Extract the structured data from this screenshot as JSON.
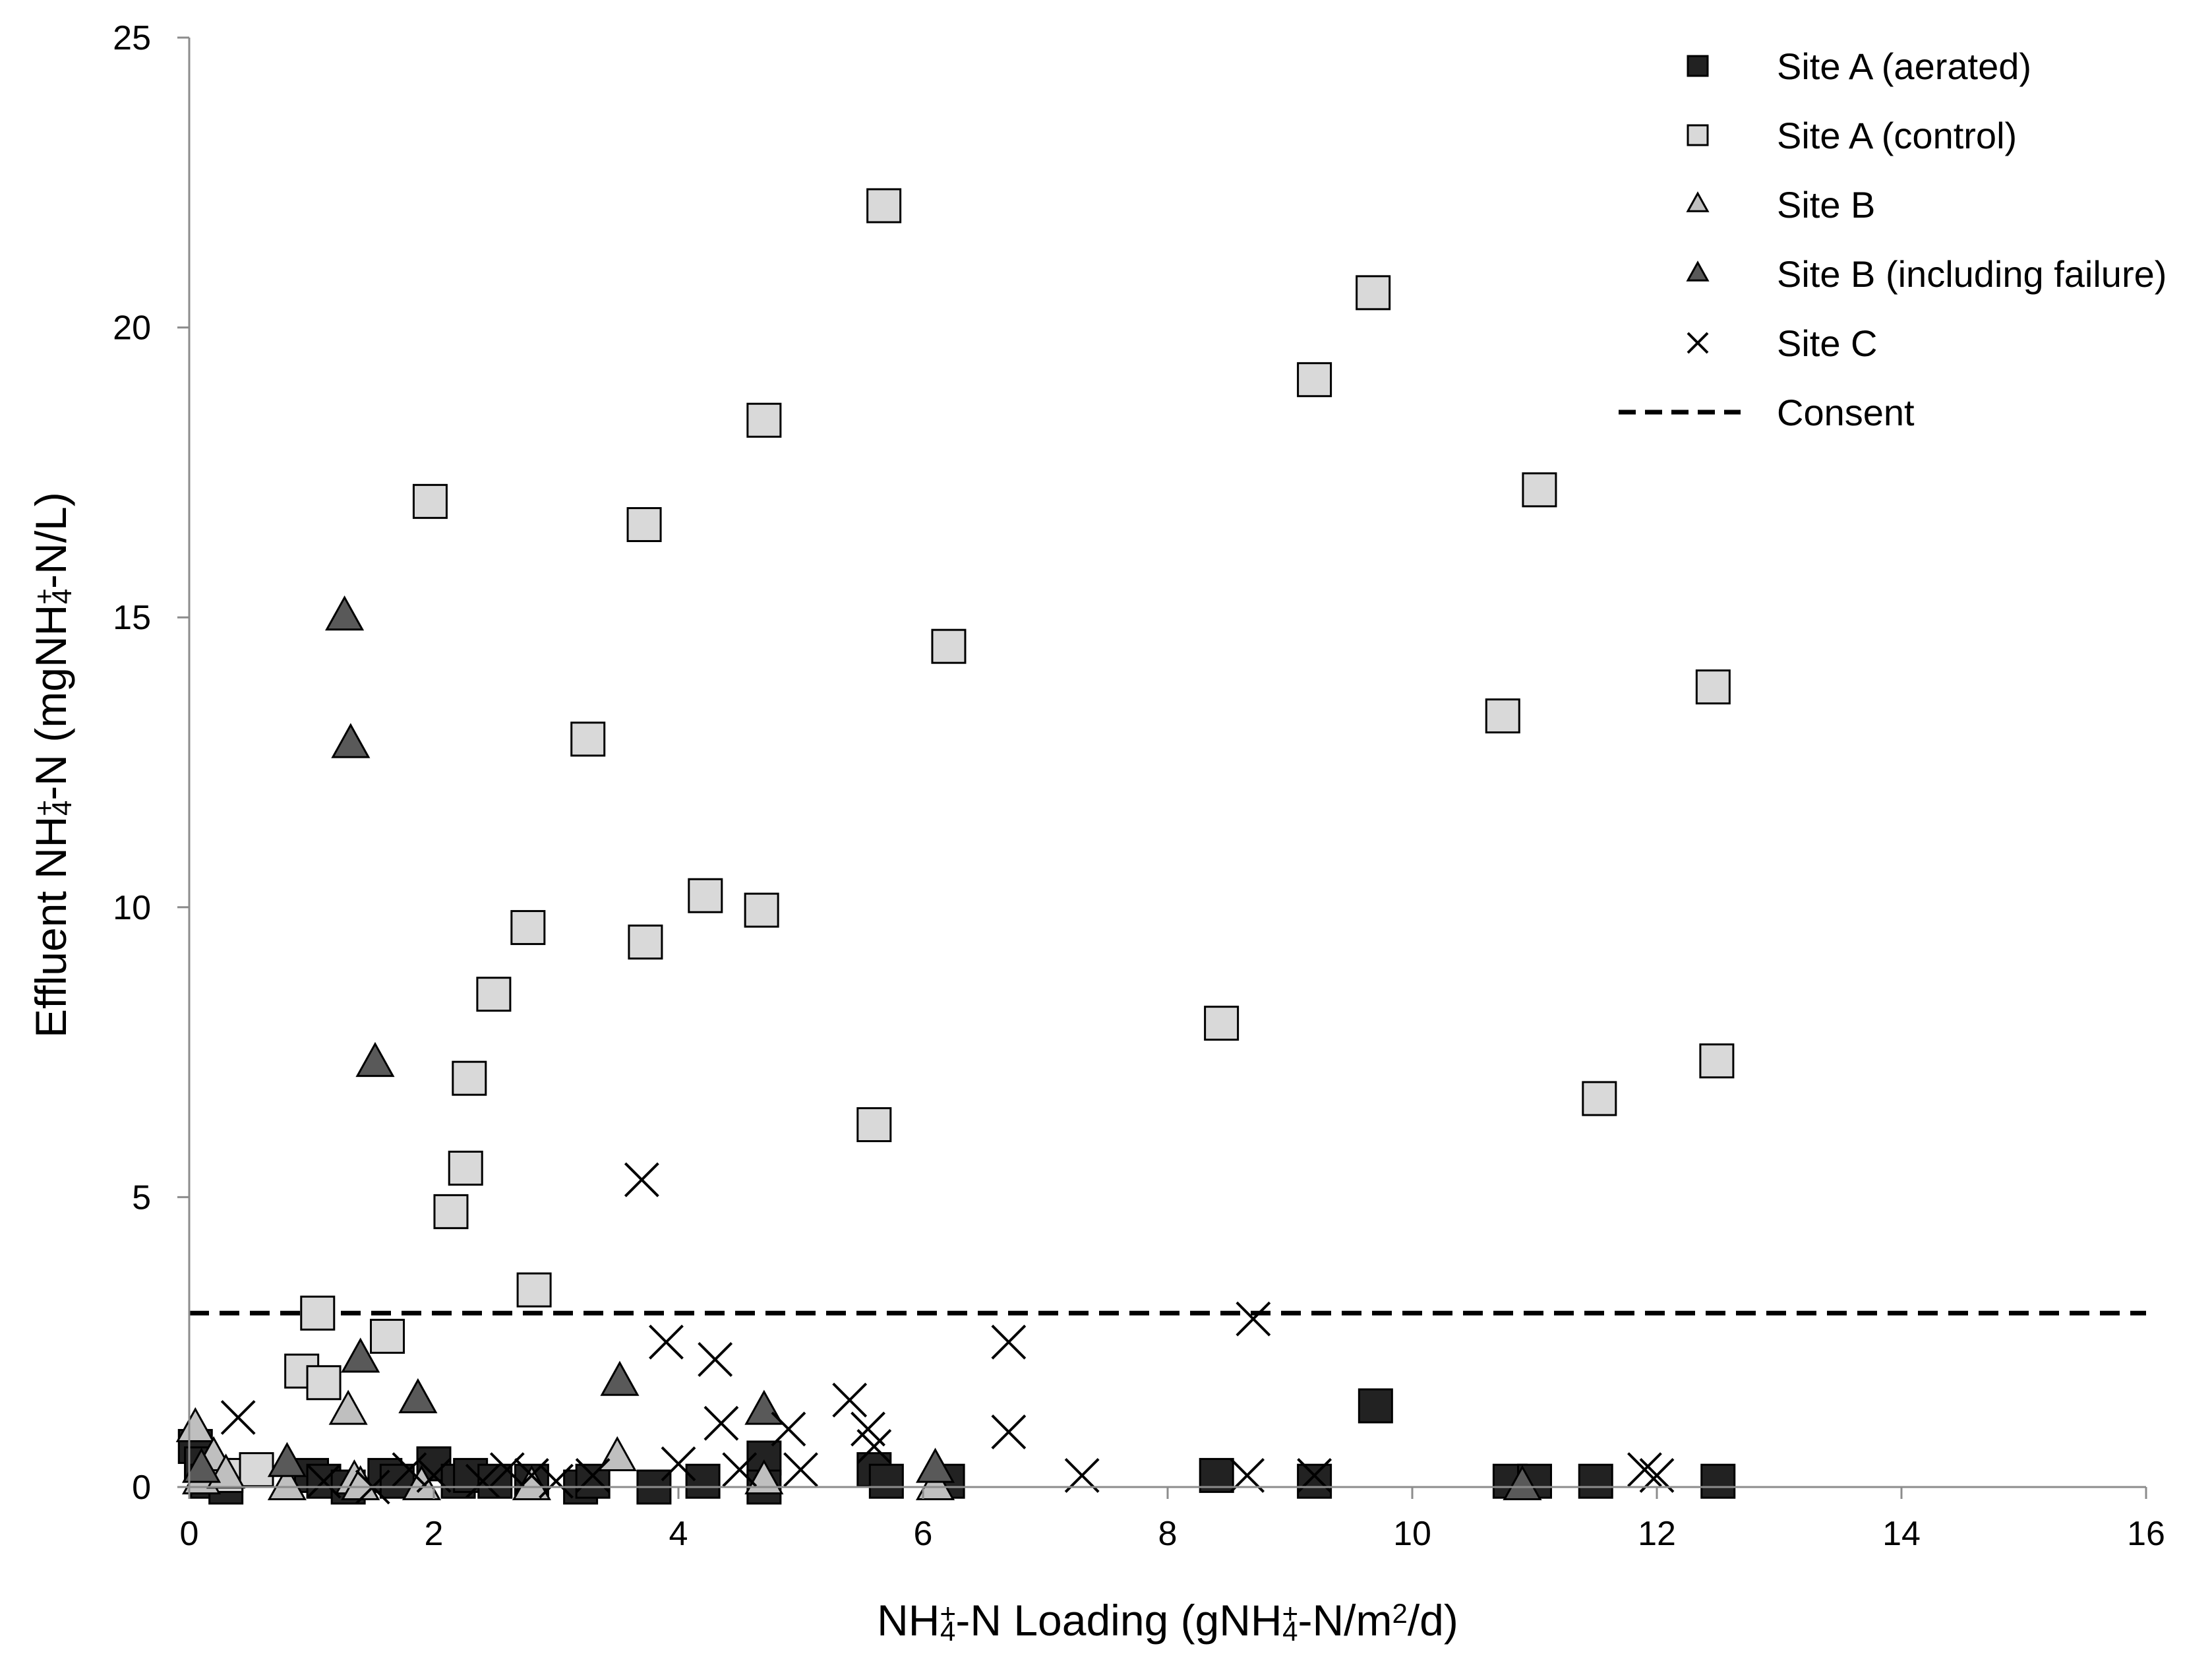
{
  "chart_data": {
    "type": "scatter",
    "title": "",
    "xlabel": {
      "pre": "NH",
      "sub1": "4",
      "sup1": "+",
      "mid": "-N Loading (gNH",
      "sub2": "4",
      "sup2": "+",
      "post1": "-N/m",
      "sup3": "2",
      "post2": "/d)"
    },
    "ylabel": {
      "pre": "Effluent NH",
      "sub1": "4",
      "sup1": "+",
      "post": "-N (mgNH",
      "sub2": "4",
      "sup2": "+",
      "end": "-N/L)"
    },
    "xlim": [
      0,
      16
    ],
    "ylim": [
      0,
      25
    ],
    "xticks": [
      "0",
      "2",
      "4",
      "6",
      "8",
      "10",
      "12",
      "14",
      "16"
    ],
    "yticks": [
      "0",
      "5",
      "10",
      "15",
      "20",
      "25"
    ],
    "grid": false,
    "legend_position": "top-right",
    "series": [
      {
        "name": "Site A (aerated)",
        "marker": "square",
        "fill": "#222222",
        "x": [
          0.05,
          0.1,
          0.15,
          0.2,
          0.3,
          1.0,
          1.1,
          1.3,
          1.6,
          1.7,
          2.0,
          2.2,
          2.3,
          2.5,
          2.8,
          3.2,
          3.3,
          3.8,
          4.2,
          4.7,
          4.7,
          5.6,
          5.7,
          6.2,
          8.4,
          9.2,
          9.7,
          10.8,
          11.0,
          11.5,
          12.5
        ],
        "y": [
          0.7,
          0.4,
          0.1,
          0.2,
          0.0,
          0.2,
          0.1,
          0.0,
          0.2,
          0.1,
          0.4,
          0.1,
          0.2,
          0.1,
          0.1,
          0.0,
          0.1,
          0.0,
          0.1,
          0.5,
          0.0,
          0.3,
          0.1,
          0.1,
          0.2,
          0.1,
          1.4,
          0.1,
          0.1,
          0.1,
          0.1
        ]
      },
      {
        "name": "Site A (control)",
        "marker": "square",
        "fill": "#d9d9d9",
        "x": [
          5.68,
          1.97,
          3.72,
          4.7,
          1.05,
          0.92,
          1.1,
          1.62,
          2.14,
          2.26,
          2.29,
          2.49,
          2.77,
          2.82,
          3.26,
          3.73,
          4.22,
          4.68,
          5.6,
          6.21,
          8.44,
          9.2,
          9.68,
          10.74,
          11.04,
          11.53,
          12.46,
          12.49,
          0.3,
          0.55
        ],
        "y": [
          22.1,
          17.0,
          16.6,
          18.4,
          3.0,
          2.0,
          1.8,
          2.6,
          4.75,
          5.5,
          7.05,
          8.5,
          9.65,
          3.4,
          12.9,
          9.4,
          10.2,
          9.95,
          6.25,
          14.5,
          8.0,
          19.1,
          20.6,
          13.3,
          17.2,
          6.7,
          13.8,
          7.35,
          0.2,
          0.3
        ]
      },
      {
        "name": "Site B",
        "marker": "triangle",
        "fill": "#bfbfbf",
        "x": [
          0.05,
          0.1,
          0.2,
          0.3,
          0.8,
          1.3,
          1.35,
          1.4,
          1.9,
          2.8,
          3.5,
          4.7,
          6.1
        ],
        "y": [
          1.0,
          0.1,
          0.5,
          0.2,
          0.0,
          1.3,
          0.1,
          0.0,
          0.0,
          0.0,
          0.5,
          0.1,
          0.0
        ]
      },
      {
        "name": "Site B (including failure)",
        "marker": "triangle",
        "fill": "#595959",
        "x": [
          1.27,
          1.32,
          1.52,
          1.4,
          1.87,
          3.52,
          4.7,
          6.1,
          10.9,
          0.1,
          0.8
        ],
        "y": [
          15.0,
          12.8,
          7.3,
          2.2,
          1.5,
          1.8,
          1.3,
          0.3,
          0.0,
          0.3,
          0.4
        ]
      },
      {
        "name": "Site C",
        "marker": "x",
        "fill": "#000000",
        "x": [
          3.7,
          3.9,
          4.3,
          4.35,
          5.4,
          5.55,
          6.7,
          6.7,
          8.7,
          8.65,
          0.4,
          1.1,
          1.5,
          1.8,
          2.0,
          2.4,
          2.6,
          2.8,
          3.0,
          3.3,
          4.0,
          4.5,
          4.9,
          5.0,
          5.6,
          7.3,
          9.2,
          11.9,
          12.0
        ],
        "y": [
          5.3,
          2.5,
          2.2,
          1.1,
          1.5,
          1.0,
          2.5,
          0.95,
          2.9,
          0.2,
          1.2,
          0.1,
          0.0,
          0.3,
          0.2,
          0.1,
          0.3,
          0.2,
          0.1,
          0.2,
          0.4,
          0.3,
          1.0,
          0.3,
          0.7,
          0.2,
          0.2,
          0.3,
          0.2
        ]
      }
    ],
    "reference_lines": [
      {
        "name": "Consent",
        "y": 3.0,
        "style": "dashed",
        "color": "#000000"
      }
    ]
  }
}
